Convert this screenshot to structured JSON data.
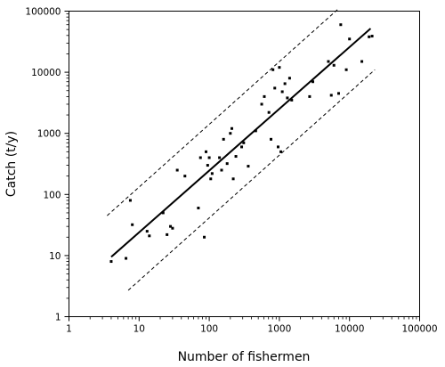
{
  "chart_data": {
    "type": "scatter",
    "title": "",
    "xlabel": "Number of fishermen",
    "ylabel": "Catch (t/y)",
    "xscale": "log",
    "yscale": "log",
    "xlim": [
      1,
      100000
    ],
    "ylim": [
      1,
      100000
    ],
    "xticks": [
      1,
      10,
      100,
      1000,
      10000,
      100000
    ],
    "xtick_labels": [
      "1",
      "10",
      "100",
      "1000",
      "10000",
      "100000"
    ],
    "yticks": [
      1,
      10,
      100,
      1000,
      10000,
      100000
    ],
    "ytick_labels": [
      "1",
      "10",
      "100",
      "1000",
      "10000",
      "100000"
    ],
    "grid": false,
    "legend": "none",
    "points": [
      [
        4,
        8
      ],
      [
        6.5,
        9
      ],
      [
        7.5,
        80
      ],
      [
        8,
        32
      ],
      [
        13,
        25
      ],
      [
        14,
        21
      ],
      [
        22,
        50
      ],
      [
        25,
        22
      ],
      [
        28,
        30
      ],
      [
        30,
        28
      ],
      [
        35,
        250
      ],
      [
        45,
        200
      ],
      [
        70,
        60
      ],
      [
        75,
        400
      ],
      [
        85,
        20
      ],
      [
        90,
        500
      ],
      [
        95,
        300
      ],
      [
        100,
        400
      ],
      [
        105,
        180
      ],
      [
        110,
        220
      ],
      [
        140,
        400
      ],
      [
        150,
        250
      ],
      [
        160,
        800
      ],
      [
        180,
        320
      ],
      [
        200,
        1000
      ],
      [
        210,
        1200
      ],
      [
        220,
        180
      ],
      [
        240,
        420
      ],
      [
        290,
        600
      ],
      [
        310,
        700
      ],
      [
        360,
        290
      ],
      [
        460,
        1100
      ],
      [
        560,
        3000
      ],
      [
        610,
        4000
      ],
      [
        710,
        2200
      ],
      [
        760,
        800
      ],
      [
        810,
        11000
      ],
      [
        860,
        5500
      ],
      [
        960,
        600
      ],
      [
        1000,
        12000
      ],
      [
        1050,
        500
      ],
      [
        1100,
        4800
      ],
      [
        1200,
        6500
      ],
      [
        1300,
        3800
      ],
      [
        1400,
        8000
      ],
      [
        1500,
        3500
      ],
      [
        2700,
        4000
      ],
      [
        3000,
        7000
      ],
      [
        5000,
        15000
      ],
      [
        5500,
        4200
      ],
      [
        6000,
        13000
      ],
      [
        7000,
        4500
      ],
      [
        7500,
        60000
      ],
      [
        9000,
        11000
      ],
      [
        10000,
        35000
      ],
      [
        15000,
        15000
      ],
      [
        19000,
        38000
      ],
      [
        21000,
        39000
      ]
    ],
    "series": [
      {
        "style": "solid",
        "x": [
          4,
          20000
        ],
        "y": [
          9.5,
          52000
        ]
      },
      {
        "style": "dashed",
        "x": [
          3.5,
          7000
        ],
        "y": [
          45,
          110000
        ]
      },
      {
        "style": "dashed",
        "x": [
          7,
          23000
        ],
        "y": [
          2.7,
          11000
        ]
      }
    ]
  }
}
